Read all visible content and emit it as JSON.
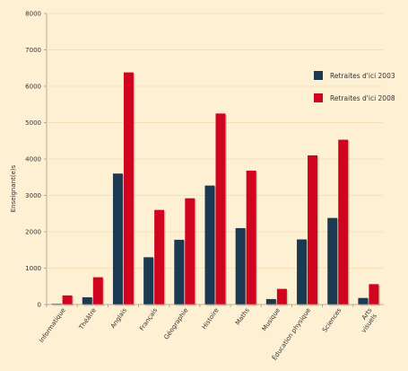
{
  "chart_data": {
    "type": "bar",
    "ylabel": "Enseignant(e)s",
    "ylim": [
      0,
      8000
    ],
    "yticks": [
      "0",
      "1000",
      "2000",
      "3000",
      "4000",
      "5000",
      "6000",
      "7000",
      "8000"
    ],
    "legend_position": "top-right",
    "categories": [
      "Informatique",
      "Théâtre",
      "Anglais",
      "Français",
      "Géographie",
      "Histoire",
      "Maths",
      "Musique",
      "Éducation physique",
      "Sciences",
      "Arts visuels"
    ],
    "series": [
      {
        "name": "Retraites d'ici 2003",
        "color": "#1b3a52",
        "values": [
          20,
          200,
          3600,
          1300,
          1780,
          3270,
          2100,
          150,
          1790,
          2380,
          180
        ]
      },
      {
        "name": "Retraites d'ici 2008",
        "color": "#d0041f",
        "values": [
          250,
          750,
          6380,
          2600,
          2920,
          5250,
          3680,
          430,
          4100,
          4530,
          560
        ]
      }
    ]
  }
}
